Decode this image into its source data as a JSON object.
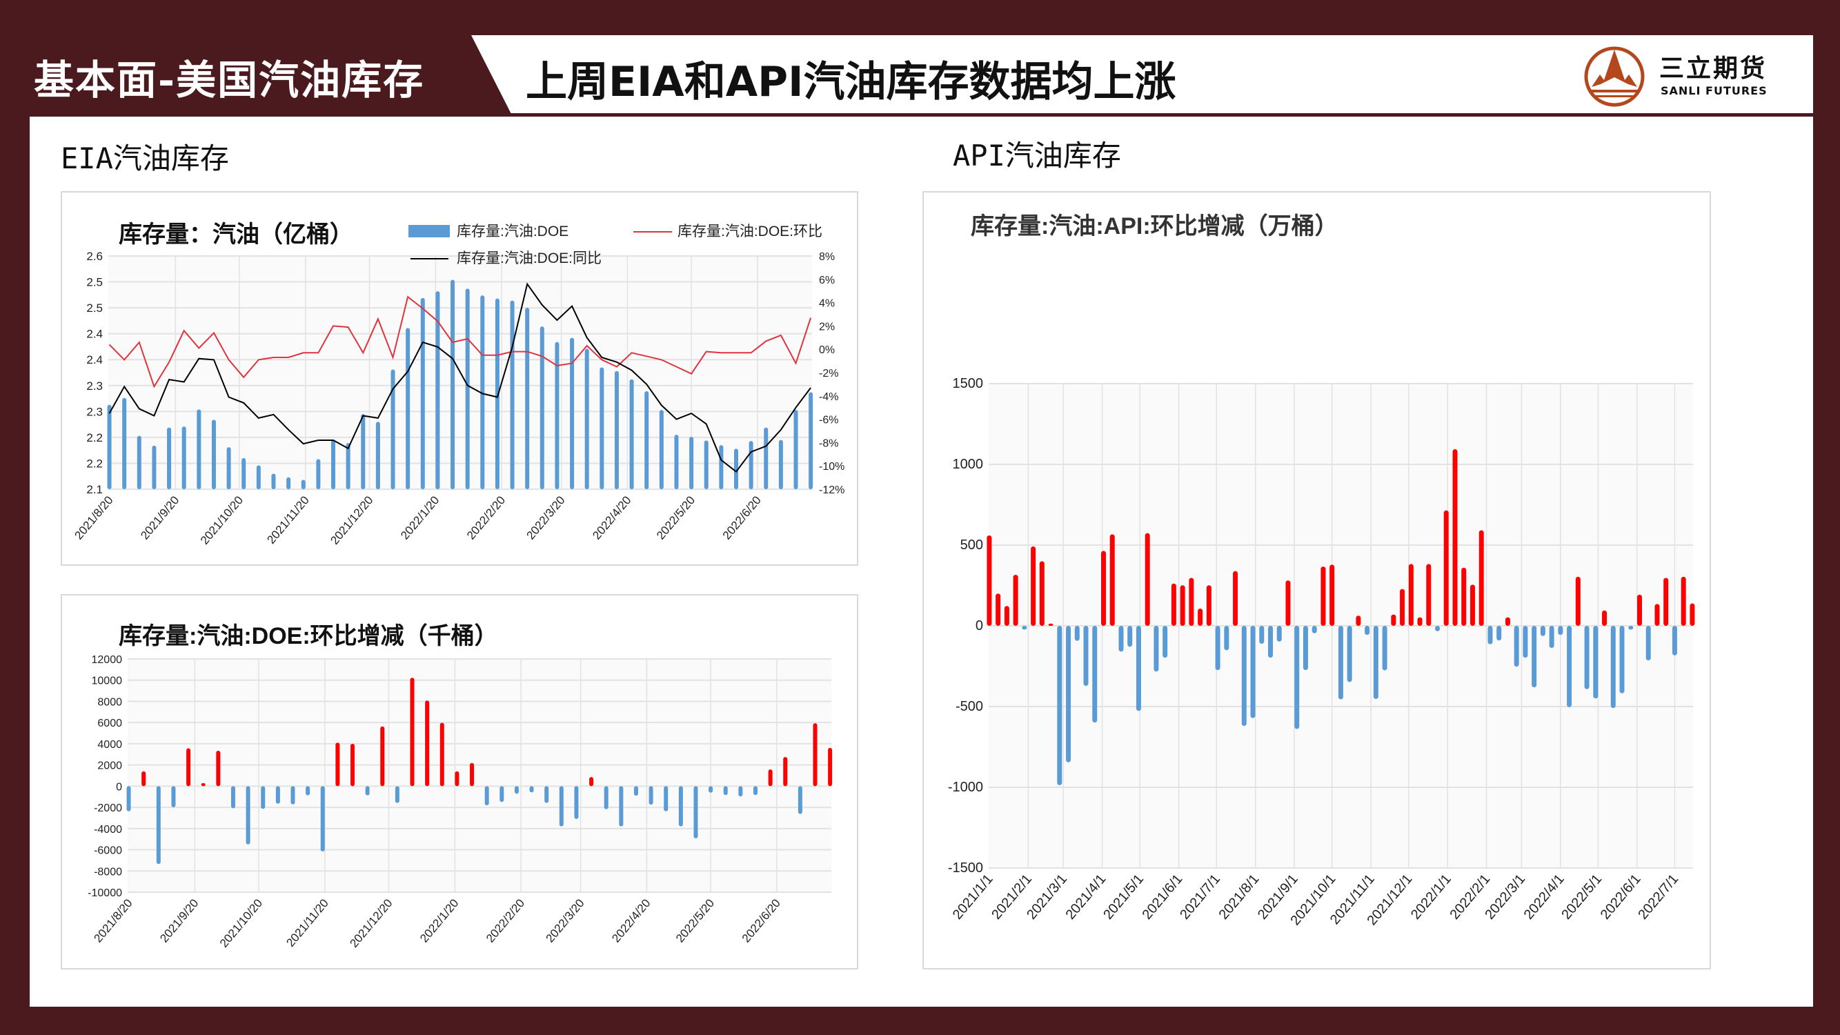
{
  "header": {
    "section_tag": "基本面-美国汽油库存",
    "title": "上周EIA和API汽油库存数据均上涨",
    "logo_cn": "三立期货",
    "logo_en": "SANLI FUTURES"
  },
  "colors": {
    "frame": "#4b1a1e",
    "bar_blue": "#5b9bd5",
    "bar_red": "#ff0000",
    "line_red": "#e0333d",
    "line_black": "#000000",
    "logo": "#b5471d"
  },
  "sections": {
    "eia_heading": "EIA汽油库存",
    "api_heading": "API汽油库存"
  },
  "chart_data": [
    {
      "type": "bar+line",
      "title": "库存量：汽油（亿桶）",
      "x_ticks": [
        "2021/8/20",
        "2021/9/20",
        "2021/10/20",
        "2021/11/20",
        "2021/12/20",
        "2022/1/20",
        "2022/2/20",
        "2022/3/20",
        "2022/4/20",
        "2022/5/20",
        "2022/6/20"
      ],
      "y_left": {
        "ylim": [
          2.1,
          2.55
        ],
        "tick_labels": [
          "2.1",
          "2.2",
          "2.2",
          "2.3",
          "2.3",
          "2.4",
          "2.4",
          "2.5",
          "2.5",
          "2.6"
        ]
      },
      "y_right": {
        "ylim": [
          -12,
          8
        ],
        "tick_labels": [
          "-12%",
          "-10%",
          "-8%",
          "-6%",
          "-4%",
          "-2%",
          "0%",
          "2%",
          "4%",
          "6%",
          "8%"
        ]
      },
      "grid": true,
      "legend_position": "top",
      "series": [
        {
          "name": "库存量:汽油:DOE",
          "type": "bar",
          "axis": "left",
          "values": [
            2.263,
            2.276,
            2.203,
            2.184,
            2.219,
            2.221,
            2.254,
            2.234,
            2.181,
            2.16,
            2.146,
            2.13,
            2.123,
            2.118,
            2.158,
            2.196,
            2.189,
            2.245,
            2.23,
            2.331,
            2.411,
            2.469,
            2.482,
            2.504,
            2.487,
            2.474,
            2.468,
            2.464,
            2.45,
            2.414,
            2.384,
            2.392,
            2.371,
            2.335,
            2.328,
            2.312,
            2.289,
            2.253,
            2.205,
            2.201,
            2.194,
            2.185,
            2.178,
            2.193,
            2.219,
            2.195,
            2.253,
            2.287
          ]
        },
        {
          "name": "库存量:汽油:DOE:环比",
          "type": "line",
          "axis": "right",
          "values": [
            0.4,
            -0.9,
            0.6,
            -3.2,
            -1.1,
            1.6,
            0.1,
            1.4,
            -0.9,
            -2.4,
            -0.9,
            -0.7,
            -0.7,
            -0.3,
            -0.3,
            2.0,
            1.9,
            -0.3,
            2.6,
            -0.7,
            4.5,
            3.5,
            2.4,
            0.6,
            0.9,
            -0.5,
            -0.5,
            -0.2,
            -0.2,
            -0.6,
            -1.4,
            -1.2,
            0.3,
            -0.9,
            -1.5,
            -0.3,
            -0.6,
            -0.9,
            -1.5,
            -2.1,
            -0.2,
            -0.3,
            -0.3,
            -0.3,
            0.7,
            1.2,
            -1.2,
            2.7
          ]
        },
        {
          "name": "库存量:汽油:DOE:同比",
          "type": "line",
          "axis": "right",
          "values": [
            -5.5,
            -3.2,
            -5.1,
            -5.7,
            -2.6,
            -2.8,
            -0.8,
            -0.9,
            -4.1,
            -4.6,
            -5.9,
            -5.6,
            -6.9,
            -8.1,
            -7.8,
            -7.8,
            -8.5,
            -5.7,
            -5.9,
            -3.4,
            -1.9,
            0.6,
            0.2,
            -0.8,
            -3.1,
            -3.8,
            -4.1,
            0.2,
            5.6,
            3.8,
            2.5,
            3.7,
            1.0,
            -0.7,
            -1.1,
            -1.8,
            -3.0,
            -4.8,
            -6.0,
            -5.5,
            -6.4,
            -9.5,
            -10.5,
            -8.8,
            -8.3,
            -6.9,
            -5.0,
            -3.3
          ]
        }
      ]
    },
    {
      "type": "bar",
      "title": "库存量:汽油:DOE:环比增减（千桶）",
      "x_ticks": [
        "2021/8/20",
        "2021/9/20",
        "2021/10/20",
        "2021/11/20",
        "2021/12/20",
        "2022/1/20",
        "2022/2/20",
        "2022/3/20",
        "2022/4/20",
        "2022/5/20",
        "2022/6/20"
      ],
      "ylim": [
        -10000,
        12000
      ],
      "y_tick_labels": [
        "-10000",
        "-8000",
        "-6000",
        "-4000",
        "-2000",
        "0",
        "2000",
        "4000",
        "6000",
        "8000",
        "10000",
        "12000"
      ],
      "grid": true,
      "values": [
        -2370,
        1400,
        -7340,
        -1990,
        3570,
        290,
        3340,
        -2080,
        -5490,
        -2140,
        -1650,
        -1720,
        -860,
        -6160,
        4110,
        4000,
        -860,
        5640,
        -1580,
        10230,
        8080,
        5980,
        1400,
        2190,
        -1810,
        -1490,
        -720,
        -590,
        -1580,
        -3790,
        -3090,
        860,
        -2170,
        -3790,
        -900,
        -1740,
        -2370,
        -3790,
        -4920,
        -610,
        -840,
        -970,
        -840,
        1580,
        2750,
        -2620,
        5940,
        3610
      ]
    },
    {
      "type": "bar",
      "title": "库存量:汽油:API:环比增减（万桶）",
      "x_ticks": [
        "2021/1/1",
        "2021/2/1",
        "2021/3/1",
        "2021/4/1",
        "2021/5/1",
        "2021/6/1",
        "2021/7/1",
        "2021/8/1",
        "2021/9/1",
        "2021/10/1",
        "2021/11/1",
        "2021/12/1",
        "2022/1/1",
        "2022/2/1",
        "2022/3/1",
        "2022/4/1",
        "2022/5/1",
        "2022/6/1",
        "2022/7/1"
      ],
      "ylim": [
        -1500,
        1500
      ],
      "y_tick_labels": [
        "-1500",
        "-1000",
        "-500",
        "0",
        "500",
        "1000",
        "1500"
      ],
      "grid": true,
      "values": [
        560,
        200,
        123,
        316,
        -23,
        492,
        400,
        14,
        -987,
        -845,
        -93,
        -372,
        -599,
        464,
        567,
        -160,
        -130,
        -527,
        574,
        -283,
        -197,
        262,
        251,
        297,
        107,
        251,
        -274,
        -151,
        339,
        -620,
        -571,
        -111,
        -197,
        -98,
        281,
        -639,
        -274,
        -46,
        367,
        379,
        -455,
        -348,
        63,
        -56,
        -453,
        -276,
        70,
        228,
        383,
        53,
        383,
        -33,
        715,
        1094,
        360,
        255,
        592,
        -114,
        -91,
        53,
        -253,
        -197,
        -381,
        -63,
        -137,
        -56,
        -504,
        304,
        -392,
        -450,
        95,
        -509,
        -418,
        -23,
        193,
        -214,
        135,
        297,
        -183,
        304,
        139
      ]
    }
  ]
}
